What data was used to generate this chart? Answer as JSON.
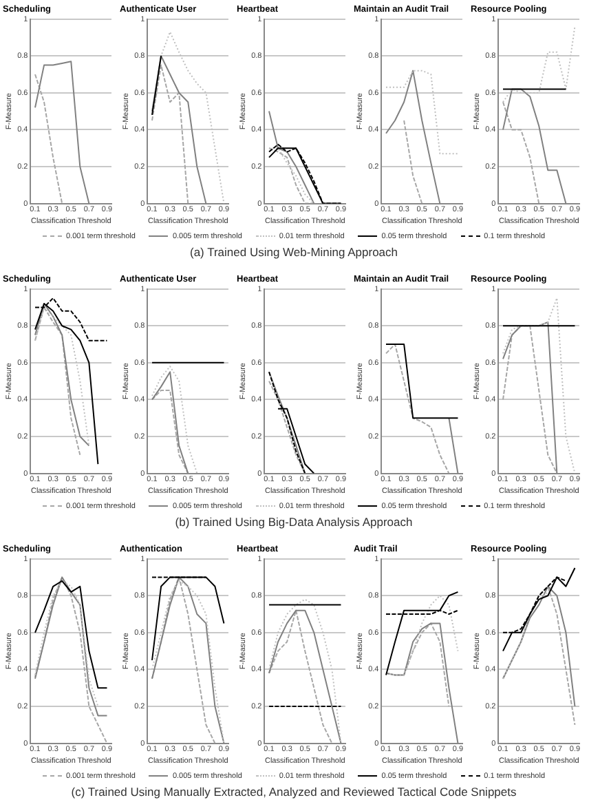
{
  "chart_data": [
    {
      "type": "line",
      "title": "Scheduling",
      "xlabel": "Classification Threshold",
      "ylabel": "F-Measure",
      "x": [
        0.1,
        0.2,
        0.3,
        0.4,
        0.5,
        0.6,
        0.7
      ],
      "xlim": [
        0.05,
        0.95
      ],
      "xticks": [
        0.1,
        0.3,
        0.5,
        0.7,
        0.9
      ],
      "ylim": [
        0,
        1
      ],
      "yticks": [
        0,
        0.2,
        0.4,
        0.6,
        0.8,
        1
      ],
      "grid": "y",
      "series": [
        {
          "color": "#a6a6a6",
          "line_style": "dashed",
          "values": [
            0.7,
            0.55,
            0.25,
            0,
            null,
            null,
            null
          ]
        },
        {
          "color": "#808080",
          "line_style": "solid",
          "values": [
            0.52,
            0.75,
            0.75,
            0.76,
            0.77,
            0.2,
            0
          ]
        }
      ]
    },
    {
      "type": "line",
      "title": "Authenticate User",
      "xlabel": "Classification Threshold",
      "ylabel": "F-Measure",
      "x": [
        0.1,
        0.2,
        0.3,
        0.4,
        0.5,
        0.6,
        0.7,
        0.8,
        0.9
      ],
      "xlim": [
        0.05,
        0.95
      ],
      "xticks": [
        0.1,
        0.3,
        0.5,
        0.7,
        0.9
      ],
      "ylim": [
        0,
        1
      ],
      "yticks": [
        0,
        0.2,
        0.4,
        0.6,
        0.8,
        1
      ],
      "grid": "y",
      "series": [
        {
          "color": "#a6a6a6",
          "line_style": "dashed",
          "values": [
            0.45,
            0.75,
            0.55,
            0.6,
            0,
            null,
            null,
            null,
            null
          ]
        },
        {
          "color": "#808080",
          "line_style": "solid",
          "values": [
            0.5,
            0.8,
            0.7,
            0.6,
            0.55,
            0.2,
            0,
            null,
            null
          ]
        },
        {
          "color": "#bfbfbf",
          "line_style": "dotted",
          "values": [
            0.48,
            0.8,
            0.93,
            0.82,
            0.72,
            0.65,
            0.6,
            0.3,
            0
          ]
        },
        {
          "color": "#000000",
          "line_style": "solid",
          "values": [
            0.48,
            0.8,
            null,
            null,
            null,
            null,
            null,
            null,
            null
          ]
        }
      ]
    },
    {
      "type": "line",
      "title": "Heartbeat",
      "xlabel": "Classification Threshold",
      "ylabel": "F-Measure",
      "legend": "bottom",
      "annotations": [
        "(a) Trained Using Web-Mining Approach"
      ],
      "x": [
        0.1,
        0.2,
        0.3,
        0.4,
        0.5,
        0.6,
        0.7,
        0.8,
        0.9
      ],
      "xlim": [
        0.05,
        0.95
      ],
      "xticks": [
        0.1,
        0.3,
        0.5,
        0.7,
        0.9
      ],
      "ylim": [
        0,
        1
      ],
      "yticks": [
        0,
        0.2,
        0.4,
        0.6,
        0.8,
        1
      ],
      "grid": "y",
      "series": [
        {
          "name": "0.001 term threshold",
          "color": "#a6a6a6",
          "line_style": "dashed",
          "values": [
            0.3,
            0.28,
            0.25,
            0.1,
            0,
            0,
            null,
            null,
            null
          ]
        },
        {
          "name": "0.005 term threshold",
          "color": "#808080",
          "line_style": "solid",
          "values": [
            0.5,
            0.3,
            0.28,
            0.2,
            0.1,
            0,
            null,
            null,
            null
          ]
        },
        {
          "name": "0.01 term threshold",
          "color": "#bfbfbf",
          "line_style": "dotted",
          "values": [
            0.3,
            0.3,
            0.22,
            0.15,
            0.05,
            0,
            null,
            null,
            null
          ]
        },
        {
          "name": "0.05 term threshold",
          "color": "#000000",
          "line_style": "solid",
          "values": [
            0.25,
            0.3,
            0.3,
            0.3,
            0.2,
            0.1,
            0,
            0,
            0
          ]
        },
        {
          "name": "0.1 term threshold",
          "color": "#000000",
          "line_style": "dashed",
          "values": [
            0.28,
            0.32,
            0.28,
            0.3,
            0.22,
            0.12,
            0,
            0,
            0
          ]
        }
      ]
    },
    {
      "type": "line",
      "title": "Maintain an Audit Trail",
      "xlabel": "Classification Threshold",
      "ylabel": "F-Measure",
      "x": [
        0.1,
        0.2,
        0.3,
        0.4,
        0.5,
        0.6,
        0.7,
        0.8,
        0.9
      ],
      "xlim": [
        0.05,
        0.95
      ],
      "xticks": [
        0.1,
        0.3,
        0.5,
        0.7,
        0.9
      ],
      "ylim": [
        0,
        1
      ],
      "yticks": [
        0,
        0.2,
        0.4,
        0.6,
        0.8,
        1
      ],
      "grid": "y",
      "series": [
        {
          "color": "#a6a6a6",
          "line_style": "dashed",
          "values": [
            null,
            null,
            0.45,
            0.15,
            0,
            null,
            null,
            null,
            null
          ]
        },
        {
          "color": "#808080",
          "line_style": "solid",
          "values": [
            0.38,
            0.45,
            0.55,
            0.72,
            0.45,
            0.22,
            0,
            null,
            null
          ]
        },
        {
          "color": "#bfbfbf",
          "line_style": "dotted",
          "values": [
            0.63,
            0.63,
            0.63,
            0.72,
            0.72,
            0.7,
            0.27,
            0.27,
            0.27
          ]
        }
      ]
    },
    {
      "type": "line",
      "title": "Resource Pooling",
      "xlabel": "Classification Threshold",
      "ylabel": "F-Measure",
      "x": [
        0.1,
        0.2,
        0.3,
        0.4,
        0.5,
        0.6,
        0.7,
        0.8,
        0.9
      ],
      "xlim": [
        0.05,
        0.95
      ],
      "xticks": [
        0.1,
        0.3,
        0.5,
        0.7,
        0.9
      ],
      "ylim": [
        0,
        1
      ],
      "yticks": [
        0,
        0.2,
        0.4,
        0.6,
        0.8,
        1
      ],
      "grid": "y",
      "series": [
        {
          "color": "#a6a6a6",
          "line_style": "dashed",
          "values": [
            0.55,
            0.4,
            0.4,
            0.25,
            0,
            null,
            null,
            null,
            null
          ]
        },
        {
          "color": "#808080",
          "line_style": "solid",
          "values": [
            0.4,
            0.62,
            0.62,
            0.58,
            0.42,
            0.18,
            0.18,
            0,
            null
          ]
        },
        {
          "color": "#bfbfbf",
          "line_style": "dotted",
          "values": [
            0.55,
            0.62,
            0.6,
            0.6,
            0.6,
            0.82,
            0.82,
            0.62,
            0.96
          ]
        },
        {
          "color": "#000000",
          "line_style": "solid",
          "values": [
            0.62,
            0.62,
            0.62,
            0.62,
            0.62,
            0.62,
            0.62,
            0.62,
            null
          ]
        }
      ]
    },
    {
      "type": "line",
      "title": "Scheduling",
      "xlabel": "Classification Threshold",
      "ylabel": "F-Measure",
      "x": [
        0.1,
        0.2,
        0.3,
        0.4,
        0.5,
        0.6,
        0.7,
        0.8,
        0.9
      ],
      "xlim": [
        0.05,
        0.95
      ],
      "xticks": [
        0.1,
        0.3,
        0.5,
        0.7,
        0.9
      ],
      "ylim": [
        0,
        1
      ],
      "yticks": [
        0,
        0.2,
        0.4,
        0.6,
        0.8,
        1
      ],
      "grid": "y",
      "series": [
        {
          "color": "#a6a6a6",
          "line_style": "dashed",
          "values": [
            0.72,
            0.9,
            0.82,
            0.75,
            0.3,
            0.1,
            null,
            null,
            null
          ]
        },
        {
          "color": "#808080",
          "line_style": "solid",
          "values": [
            0.75,
            0.92,
            0.85,
            0.75,
            0.4,
            0.2,
            0.15,
            null,
            null
          ]
        },
        {
          "color": "#bfbfbf",
          "line_style": "dotted",
          "values": [
            0.72,
            0.9,
            0.85,
            0.8,
            0.75,
            0.5,
            0.15,
            null,
            null
          ]
        },
        {
          "color": "#000000",
          "line_style": "solid",
          "values": [
            0.78,
            0.92,
            0.88,
            0.8,
            0.78,
            0.72,
            0.6,
            0.05,
            null
          ]
        },
        {
          "color": "#000000",
          "line_style": "dashed",
          "values": [
            0.9,
            0.9,
            0.95,
            0.88,
            0.88,
            0.82,
            0.72,
            0.72,
            0.72
          ]
        }
      ]
    },
    {
      "type": "line",
      "title": "Authenticate User",
      "xlabel": "Classification Threshold",
      "ylabel": "F-Measure",
      "x": [
        0.1,
        0.2,
        0.3,
        0.4,
        0.5,
        0.6,
        0.7,
        0.8,
        0.9
      ],
      "xlim": [
        0.05,
        0.95
      ],
      "xticks": [
        0.1,
        0.3,
        0.5,
        0.7,
        0.9
      ],
      "ylim": [
        0,
        1
      ],
      "yticks": [
        0,
        0.2,
        0.4,
        0.6,
        0.8,
        1
      ],
      "grid": "y",
      "series": [
        {
          "color": "#a6a6a6",
          "line_style": "dashed",
          "values": [
            0.4,
            0.45,
            0.45,
            0.1,
            0,
            null,
            null,
            null,
            null
          ]
        },
        {
          "color": "#808080",
          "line_style": "solid",
          "values": [
            0.4,
            0.47,
            0.55,
            0.15,
            0,
            null,
            null,
            null,
            null
          ]
        },
        {
          "color": "#bfbfbf",
          "line_style": "dotted",
          "values": [
            0.42,
            0.52,
            0.58,
            0.5,
            0.15,
            0,
            null,
            null,
            null
          ]
        },
        {
          "color": "#000000",
          "line_style": "solid",
          "values": [
            0.6,
            0.6,
            0.6,
            0.6,
            0.6,
            0.6,
            0.6,
            0.6,
            0.6
          ]
        }
      ]
    },
    {
      "type": "line",
      "title": "Heartbeat",
      "xlabel": "Classification Threshold",
      "ylabel": "F-Measure",
      "legend": "bottom",
      "annotations": [
        "(b) Trained Using Big-Data Analysis Approach"
      ],
      "x": [
        0.1,
        0.2,
        0.3,
        0.4,
        0.5,
        0.6
      ],
      "xlim": [
        0.05,
        0.95
      ],
      "xticks": [
        0.1,
        0.3,
        0.5,
        0.7,
        0.9
      ],
      "ylim": [
        0,
        1
      ],
      "yticks": [
        0,
        0.2,
        0.4,
        0.6,
        0.8,
        1
      ],
      "grid": "y",
      "series": [
        {
          "name": "0.001 term threshold",
          "color": "#a6a6a6",
          "line_style": "dashed",
          "values": [
            0.5,
            0.4,
            0.25,
            0.1,
            0,
            null
          ]
        },
        {
          "name": "0.005 term threshold",
          "color": "#808080",
          "line_style": "solid",
          "values": [
            0.55,
            0.42,
            0.3,
            0.15,
            0,
            null
          ]
        },
        {
          "name": "0.01 term threshold",
          "color": "#bfbfbf",
          "line_style": "dotted",
          "values": [
            0.55,
            0.4,
            0.3,
            0.1,
            0,
            null
          ]
        },
        {
          "name": "0.05 term threshold",
          "color": "#000000",
          "line_style": "solid",
          "values": [
            null,
            0.35,
            0.35,
            0.2,
            0.05,
            0
          ]
        },
        {
          "name": "0.1 term threshold",
          "color": "#000000",
          "line_style": "dashed",
          "values": [
            0.55,
            0.4,
            0.3,
            0.12,
            0,
            null
          ]
        }
      ]
    },
    {
      "type": "line",
      "title": "Maintain an Audit Trail",
      "xlabel": "Classification Threshold",
      "ylabel": "F-Measure",
      "x": [
        0.1,
        0.2,
        0.3,
        0.4,
        0.5,
        0.6,
        0.7,
        0.8,
        0.9
      ],
      "xlim": [
        0.05,
        0.95
      ],
      "xticks": [
        0.1,
        0.3,
        0.5,
        0.7,
        0.9
      ],
      "ylim": [
        0,
        1
      ],
      "yticks": [
        0,
        0.2,
        0.4,
        0.6,
        0.8,
        1
      ],
      "grid": "y",
      "series": [
        {
          "color": "#a6a6a6",
          "line_style": "dashed",
          "values": [
            0.65,
            0.7,
            0.5,
            0.3,
            0.28,
            0.25,
            0.1,
            0,
            null
          ]
        },
        {
          "color": "#808080",
          "line_style": "solid",
          "values": [
            null,
            null,
            null,
            null,
            null,
            null,
            null,
            0.3,
            0
          ]
        },
        {
          "color": "#000000",
          "line_style": "solid",
          "values": [
            0.7,
            0.7,
            0.7,
            0.3,
            0.3,
            0.3,
            0.3,
            0.3,
            0.3
          ]
        }
      ]
    },
    {
      "type": "line",
      "title": "Resource Pooling",
      "xlabel": "Classification Threshold",
      "ylabel": "F-Measure",
      "x": [
        0.1,
        0.2,
        0.3,
        0.4,
        0.5,
        0.6,
        0.7,
        0.8,
        0.9
      ],
      "xlim": [
        0.05,
        0.95
      ],
      "xticks": [
        0.1,
        0.3,
        0.5,
        0.7,
        0.9
      ],
      "ylim": [
        0,
        1
      ],
      "yticks": [
        0,
        0.2,
        0.4,
        0.6,
        0.8,
        1
      ],
      "grid": "y",
      "series": [
        {
          "color": "#a6a6a6",
          "line_style": "dashed",
          "values": [
            0.4,
            0.75,
            0.8,
            0.8,
            0.45,
            0.1,
            0,
            null,
            null
          ]
        },
        {
          "color": "#808080",
          "line_style": "solid",
          "values": [
            0.62,
            0.75,
            0.8,
            0.8,
            0.8,
            0.82,
            0,
            null,
            null
          ]
        },
        {
          "color": "#bfbfbf",
          "line_style": "dotted",
          "values": [
            0.65,
            0.78,
            0.8,
            0.8,
            0.8,
            0.82,
            0.95,
            0.2,
            0
          ]
        },
        {
          "color": "#000000",
          "line_style": "solid",
          "values": [
            0.8,
            0.8,
            0.8,
            0.8,
            0.8,
            0.8,
            0.8,
            0.8,
            0.8
          ]
        }
      ]
    },
    {
      "type": "line",
      "title": "Scheduling",
      "xlabel": "Classification Threshold",
      "ylabel": "F-Measure",
      "x": [
        0.1,
        0.2,
        0.3,
        0.4,
        0.5,
        0.6,
        0.7,
        0.8,
        0.9
      ],
      "xlim": [
        0.05,
        0.95
      ],
      "xticks": [
        0.1,
        0.3,
        0.5,
        0.7,
        0.9
      ],
      "ylim": [
        0,
        1
      ],
      "yticks": [
        0,
        0.2,
        0.4,
        0.6,
        0.8,
        1
      ],
      "grid": "y",
      "series": [
        {
          "color": "#a6a6a6",
          "line_style": "dashed",
          "values": [
            0.36,
            0.55,
            0.78,
            0.9,
            0.8,
            0.6,
            0.2,
            0.1,
            0
          ]
        },
        {
          "color": "#808080",
          "line_style": "solid",
          "values": [
            0.35,
            0.55,
            0.75,
            0.9,
            0.82,
            0.75,
            0.3,
            0.15,
            0.15
          ]
        },
        {
          "color": "#bfbfbf",
          "line_style": "dotted",
          "values": [
            0.37,
            0.6,
            0.8,
            0.88,
            0.85,
            0.75,
            0.35,
            0.2,
            null
          ]
        },
        {
          "color": "#000000",
          "line_style": "solid",
          "values": [
            0.6,
            0.72,
            0.85,
            0.88,
            0.82,
            0.85,
            0.5,
            0.3,
            0.3
          ]
        }
      ]
    },
    {
      "type": "line",
      "title": "Authentication",
      "xlabel": "Classification Threshold",
      "ylabel": "F-Measure",
      "x": [
        0.1,
        0.2,
        0.3,
        0.4,
        0.5,
        0.6,
        0.7,
        0.8,
        0.9
      ],
      "xlim": [
        0.05,
        0.95
      ],
      "xticks": [
        0.1,
        0.3,
        0.5,
        0.7,
        0.9
      ],
      "ylim": [
        0,
        1
      ],
      "yticks": [
        0,
        0.2,
        0.4,
        0.6,
        0.8,
        1
      ],
      "grid": "y",
      "series": [
        {
          "color": "#a6a6a6",
          "line_style": "dashed",
          "values": [
            0.35,
            0.55,
            0.78,
            0.9,
            0.7,
            0.4,
            0.1,
            0,
            null
          ]
        },
        {
          "color": "#808080",
          "line_style": "solid",
          "values": [
            0.35,
            0.55,
            0.75,
            0.9,
            0.85,
            0.7,
            0.65,
            0.2,
            0
          ]
        },
        {
          "color": "#bfbfbf",
          "line_style": "dotted",
          "values": [
            0.4,
            0.6,
            0.8,
            0.88,
            0.85,
            0.8,
            0.7,
            0.3,
            0
          ]
        },
        {
          "color": "#000000",
          "line_style": "solid",
          "values": [
            0.45,
            0.85,
            0.9,
            0.9,
            0.9,
            0.9,
            0.9,
            0.85,
            0.65
          ]
        },
        {
          "color": "#000000",
          "line_style": "dashed",
          "values": [
            0.9,
            0.9,
            0.9,
            0.9,
            0.9,
            0.9,
            0.9,
            null,
            null
          ]
        }
      ]
    },
    {
      "type": "line",
      "title": "Heartbeat",
      "xlabel": "Classification Threshold",
      "ylabel": "F-Measure",
      "legend": "bottom",
      "annotations": [
        "(c) Trained Using Manually Extracted, Analyzed and Reviewed Tactical Code Snippets"
      ],
      "x": [
        0.1,
        0.2,
        0.3,
        0.4,
        0.5,
        0.6,
        0.7,
        0.8,
        0.9
      ],
      "xlim": [
        0.05,
        0.95
      ],
      "xticks": [
        0.1,
        0.3,
        0.5,
        0.7,
        0.9
      ],
      "ylim": [
        0,
        1
      ],
      "yticks": [
        0,
        0.2,
        0.4,
        0.6,
        0.8,
        1
      ],
      "grid": "y",
      "series": [
        {
          "name": "0.001 term threshold",
          "color": "#a6a6a6",
          "line_style": "dashed",
          "values": [
            0.38,
            0.5,
            0.55,
            0.72,
            0.5,
            0.3,
            0.1,
            0,
            null
          ]
        },
        {
          "name": "0.005 term threshold",
          "color": "#808080",
          "line_style": "solid",
          "values": [
            0.38,
            0.55,
            0.65,
            0.72,
            0.72,
            0.6,
            0.4,
            0.2,
            0
          ]
        },
        {
          "name": "0.01 term threshold",
          "color": "#bfbfbf",
          "line_style": "dotted",
          "values": [
            0.4,
            0.6,
            0.7,
            0.75,
            0.78,
            0.75,
            0.6,
            0.4,
            0
          ]
        },
        {
          "name": "0.05 term threshold",
          "color": "#000000",
          "line_style": "solid",
          "values": [
            0.75,
            0.75,
            0.75,
            0.75,
            0.75,
            0.75,
            0.75,
            0.75,
            0.75
          ]
        },
        {
          "name": "0.1 term threshold",
          "color": "#000000",
          "line_style": "dashed",
          "values": [
            0.2,
            0.2,
            0.2,
            0.2,
            0.2,
            0.2,
            0.2,
            0.2,
            0.2
          ]
        }
      ]
    },
    {
      "type": "line",
      "title": "Audit Trail",
      "xlabel": "Classification Threshold",
      "ylabel": "F-Measure",
      "x": [
        0.1,
        0.2,
        0.3,
        0.4,
        0.5,
        0.6,
        0.7,
        0.8,
        0.9
      ],
      "xlim": [
        0.05,
        0.95
      ],
      "xticks": [
        0.1,
        0.3,
        0.5,
        0.7,
        0.9
      ],
      "ylim": [
        0,
        1
      ],
      "yticks": [
        0,
        0.2,
        0.4,
        0.6,
        0.8,
        1
      ],
      "grid": "y",
      "series": [
        {
          "color": "#a6a6a6",
          "line_style": "dashed",
          "values": [
            0.38,
            0.37,
            0.37,
            0.5,
            0.6,
            0.65,
            0.55,
            0.2,
            null
          ]
        },
        {
          "color": "#808080",
          "line_style": "solid",
          "values": [
            0.38,
            0.37,
            0.37,
            0.55,
            0.62,
            0.65,
            0.65,
            0.3,
            0
          ]
        },
        {
          "color": "#bfbfbf",
          "line_style": "dotted",
          "values": [
            0.38,
            0.37,
            0.37,
            0.5,
            0.65,
            0.75,
            0.8,
            0.75,
            0.5
          ]
        },
        {
          "color": "#000000",
          "line_style": "solid",
          "values": [
            0.37,
            0.55,
            0.72,
            0.72,
            0.72,
            0.72,
            0.72,
            0.8,
            0.82
          ]
        },
        {
          "color": "#000000",
          "line_style": "dashed",
          "values": [
            0.7,
            0.7,
            0.7,
            0.7,
            0.7,
            0.7,
            0.72,
            0.7,
            0.72
          ]
        }
      ]
    },
    {
      "type": "line",
      "title": "Resource Pooling",
      "xlabel": "Classification Threshold",
      "ylabel": "F-Measure",
      "x": [
        0.1,
        0.2,
        0.3,
        0.4,
        0.5,
        0.6,
        0.7,
        0.8,
        0.9
      ],
      "xlim": [
        0.05,
        0.95
      ],
      "xticks": [
        0.1,
        0.3,
        0.5,
        0.7,
        0.9
      ],
      "ylim": [
        0,
        1
      ],
      "yticks": [
        0,
        0.2,
        0.4,
        0.6,
        0.8,
        1
      ],
      "grid": "y",
      "series": [
        {
          "color": "#a6a6a6",
          "line_style": "dashed",
          "values": [
            0.35,
            0.45,
            0.55,
            0.7,
            0.8,
            0.85,
            0.7,
            0.4,
            0.1
          ]
        },
        {
          "color": "#808080",
          "line_style": "solid",
          "values": [
            0.35,
            0.45,
            0.55,
            0.68,
            0.75,
            0.85,
            0.8,
            0.6,
            0.2
          ]
        },
        {
          "color": "#bfbfbf",
          "line_style": "dotted",
          "values": [
            0.35,
            0.45,
            0.55,
            0.7,
            0.78,
            0.82,
            0.9,
            0.85,
            0.95
          ]
        },
        {
          "color": "#000000",
          "line_style": "solid",
          "values": [
            0.5,
            0.6,
            0.6,
            0.7,
            0.78,
            0.8,
            0.9,
            0.85,
            0.95
          ]
        },
        {
          "color": "#000000",
          "line_style": "dashed",
          "values": [
            0.6,
            0.6,
            0.62,
            0.7,
            0.8,
            0.85,
            0.9,
            0.88,
            null
          ]
        }
      ]
    }
  ]
}
